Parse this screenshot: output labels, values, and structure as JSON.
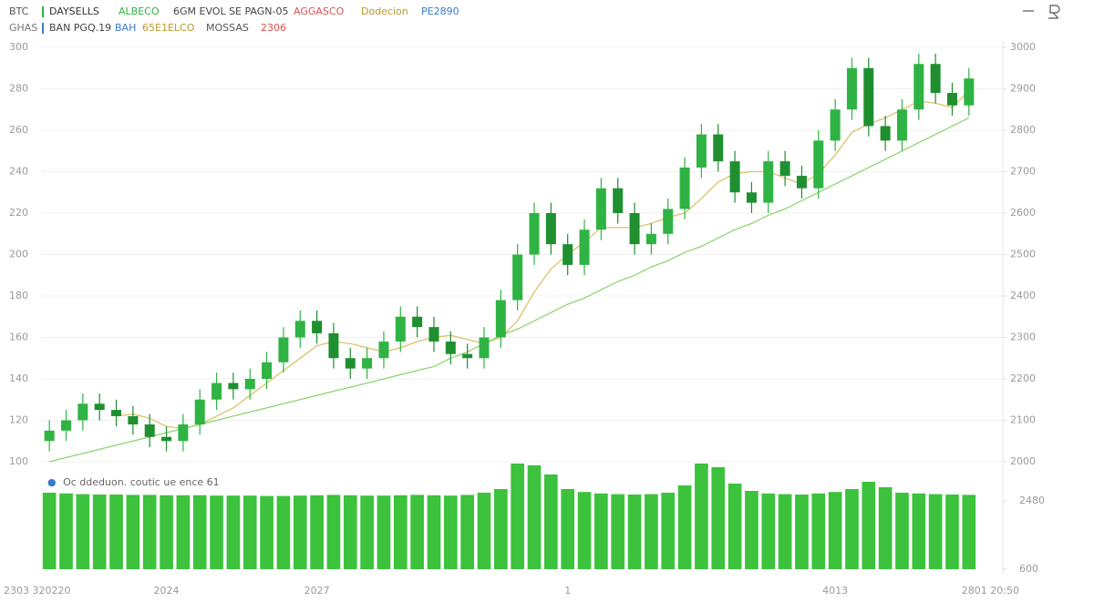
{
  "header": {
    "row1": [
      "BTC",
      "DAYSELLS",
      "ALBECO",
      "6GM EVOL SE PAGN-05",
      "AGGASCO",
      "Dodecion",
      "PE2890"
    ],
    "row2": [
      "GHAS",
      "BAN PGQ.19",
      "BAH",
      "65E1ELCO",
      "MOSSAS",
      "2306"
    ]
  },
  "chart_data": {
    "type": "candlestick",
    "categories": [
      "2303 320220",
      null,
      null,
      null,
      null,
      null,
      null,
      "2024",
      null,
      null,
      null,
      null,
      null,
      null,
      null,
      null,
      "2027",
      null,
      null,
      null,
      null,
      null,
      null,
      null,
      null,
      null,
      null,
      null,
      null,
      null,
      null,
      "1",
      null,
      null,
      null,
      null,
      null,
      null,
      null,
      null,
      null,
      null,
      null,
      null,
      null,
      null,
      null,
      "4013",
      null,
      null,
      null,
      null,
      null,
      null,
      null,
      "2801 20:50"
    ],
    "open": [
      110,
      115,
      120,
      128,
      125,
      122,
      118,
      112,
      110,
      118,
      130,
      138,
      135,
      140,
      148,
      160,
      168,
      162,
      150,
      145,
      150,
      158,
      170,
      165,
      158,
      152,
      150,
      160,
      178,
      200,
      220,
      205,
      195,
      212,
      232,
      220,
      205,
      210,
      222,
      242,
      258,
      245,
      230,
      225,
      245,
      238,
      232,
      255,
      270,
      290,
      262,
      255,
      270,
      292,
      278,
      272
    ],
    "high": [
      120,
      125,
      133,
      133,
      130,
      127,
      123,
      117,
      123,
      135,
      143,
      143,
      145,
      153,
      165,
      173,
      173,
      167,
      155,
      155,
      163,
      175,
      175,
      170,
      163,
      157,
      165,
      183,
      205,
      225,
      225,
      210,
      217,
      237,
      237,
      225,
      215,
      227,
      247,
      263,
      263,
      250,
      235,
      250,
      250,
      243,
      260,
      275,
      295,
      295,
      267,
      275,
      297,
      297,
      283,
      290
    ],
    "low": [
      105,
      110,
      115,
      120,
      117,
      113,
      107,
      105,
      105,
      113,
      125,
      130,
      130,
      135,
      143,
      155,
      157,
      145,
      140,
      140,
      145,
      153,
      160,
      153,
      147,
      145,
      145,
      155,
      173,
      195,
      200,
      190,
      190,
      207,
      215,
      200,
      200,
      205,
      217,
      237,
      240,
      225,
      220,
      220,
      233,
      227,
      227,
      250,
      265,
      257,
      250,
      250,
      265,
      273,
      267,
      267
    ],
    "close": [
      115,
      120,
      128,
      125,
      122,
      118,
      112,
      110,
      118,
      130,
      138,
      135,
      140,
      148,
      160,
      168,
      162,
      150,
      145,
      150,
      158,
      170,
      165,
      158,
      152,
      150,
      160,
      178,
      200,
      220,
      205,
      195,
      212,
      232,
      220,
      205,
      210,
      222,
      242,
      258,
      245,
      230,
      225,
      245,
      238,
      232,
      255,
      270,
      290,
      262,
      255,
      270,
      292,
      278,
      272,
      285
    ],
    "up_color": "#2fb344",
    "down_color": "#1f8f30",
    "series": [
      {
        "name": "Dodecion",
        "color": "#d9c46a",
        "values": [
          null,
          null,
          null,
          null,
          122,
          123,
          121,
          117,
          116,
          118,
          122,
          126,
          132,
          138,
          144,
          150,
          156,
          158,
          157,
          155,
          153,
          155,
          158,
          160,
          161,
          159,
          157,
          160,
          168,
          182,
          193,
          200,
          206,
          213,
          213,
          213,
          215,
          218,
          220,
          227,
          235,
          239,
          240,
          240,
          237,
          234,
          239,
          248,
          259,
          263,
          266,
          270,
          274,
          273,
          271,
          279
        ]
      },
      {
        "name": "ALBECO",
        "color": "#8fd46f",
        "values": [
          100,
          102,
          104,
          106,
          108,
          110,
          112,
          114,
          116,
          118,
          120,
          122,
          124,
          126,
          128,
          130,
          132,
          134,
          136,
          138,
          140,
          142,
          144,
          146,
          150,
          153,
          157,
          161,
          164,
          168,
          172,
          176,
          179,
          183,
          187,
          190,
          194,
          197,
          201,
          204,
          208,
          212,
          215,
          219,
          222,
          226,
          230,
          234,
          238,
          242,
          246,
          250,
          254,
          258,
          262,
          266
        ]
      }
    ],
    "ylim": [
      100,
      300
    ],
    "yticks": [
      100,
      120,
      140,
      160,
      180,
      200,
      220,
      240,
      260,
      280,
      300
    ],
    "y2lim": [
      2000,
      3000
    ],
    "y2ticks": [
      2000,
      2100,
      2200,
      2300,
      2400,
      2500,
      2600,
      2700,
      2800,
      2900,
      3000
    ],
    "grid": true,
    "volume": {
      "label": "Oc ddeduon. coutic ue ence 61",
      "color": "#3cc23c",
      "values": [
        2700,
        2680,
        2660,
        2650,
        2650,
        2640,
        2640,
        2630,
        2630,
        2630,
        2620,
        2620,
        2620,
        2610,
        2610,
        2620,
        2630,
        2640,
        2630,
        2620,
        2620,
        2630,
        2640,
        2630,
        2620,
        2640,
        2700,
        2800,
        3500,
        3450,
        3200,
        2800,
        2720,
        2680,
        2660,
        2650,
        2660,
        2700,
        2900,
        3500,
        3400,
        2950,
        2750,
        2680,
        2660,
        2650,
        2680,
        2720,
        2800,
        3000,
        2850,
        2700,
        2680,
        2660,
        2650,
        2640
      ],
      "ylim": [
        600,
        3600
      ],
      "yticks": [
        600,
        2480
      ]
    }
  }
}
